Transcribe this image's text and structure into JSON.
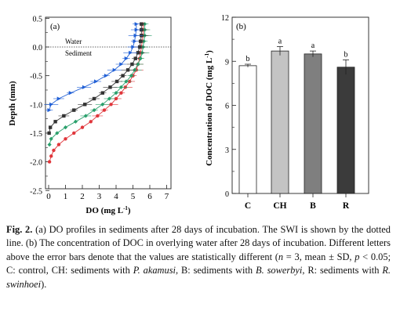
{
  "panel_a": {
    "label": "(a)",
    "water_label": "Water",
    "sediment_label": "Sediment",
    "xlabel_main": "DO (mg L",
    "xlabel_sup": "-1",
    "xlabel_end": ")",
    "ylabel": "Depth (mm)",
    "colors": {
      "C": "#e0363b",
      "CH": "#2aa06c",
      "B": "#333333",
      "R": "#2160d6"
    }
  },
  "panel_b": {
    "label": "(b)",
    "ylabel_main": "Concentration of DOC (mg L",
    "ylabel_sup": "-1",
    "ylabel_end": ")",
    "bar_colors": [
      "#ffffff",
      "#c4c4c4",
      "#7f7f7f",
      "#3b3b3b"
    ]
  },
  "caption": {
    "title": "Fig. 2.",
    "text1": " (a) DO profiles in sediments after 28 days of incubation. The SWI is shown by the dotted line. (b) The concentration of DOC in overlying water after 28 days of incubation. Different letters above the error bars denote that the values are statistically different (",
    "n": "n",
    "text2": " = 3, mean ± SD, ",
    "p": "p",
    "text3": " < 0.05; C: control, CH: sediments with ",
    "sp1": "P. akamusi",
    "text4": ", B: sediments with ",
    "sp2": "B. sowerbyi",
    "text5": ", R: sediments with ",
    "sp3": "R. swinhoei",
    "text6": ")."
  },
  "chart_data": [
    {
      "type": "line",
      "x_axis": {
        "ticks": [
          "0",
          "1",
          "2",
          "3",
          "4",
          "5",
          "6",
          "7"
        ],
        "range": [
          0,
          7
        ]
      },
      "y_axis": {
        "ticks": [
          "0.5",
          "0.0",
          "-0.5",
          "-1.0",
          "-1.5",
          "-2.0",
          "-2.5"
        ],
        "range": [
          -2.5,
          0.5
        ]
      },
      "swi_depth": 0.0,
      "series": [
        {
          "key": "C",
          "x": [
            5.6,
            5.6,
            5.6,
            5.55,
            5.5,
            5.45,
            5.4,
            5.3,
            5.2,
            5.0,
            4.8,
            4.55,
            4.3,
            4.0,
            3.7,
            3.3,
            2.9,
            2.5,
            2.0,
            1.5,
            1.0,
            0.6,
            0.3,
            0.15,
            0.05
          ],
          "y": [
            0.4,
            0.3,
            0.2,
            0.1,
            0.0,
            -0.1,
            -0.2,
            -0.3,
            -0.4,
            -0.5,
            -0.6,
            -0.7,
            -0.8,
            -0.9,
            -1.0,
            -1.1,
            -1.2,
            -1.3,
            -1.4,
            -1.5,
            -1.6,
            -1.7,
            -1.8,
            -1.9,
            -2.0
          ]
        },
        {
          "key": "CH",
          "x": [
            5.7,
            5.7,
            5.7,
            5.65,
            5.6,
            5.55,
            5.45,
            5.3,
            5.1,
            4.9,
            4.6,
            4.3,
            4.0,
            3.6,
            3.2,
            2.7,
            2.2,
            1.6,
            1.0,
            0.5,
            0.15,
            0.05
          ],
          "y": [
            0.4,
            0.3,
            0.2,
            0.1,
            0.0,
            -0.1,
            -0.2,
            -0.3,
            -0.4,
            -0.5,
            -0.6,
            -0.7,
            -0.8,
            -0.9,
            -1.0,
            -1.1,
            -1.2,
            -1.3,
            -1.4,
            -1.5,
            -1.6,
            -1.7
          ]
        },
        {
          "key": "B",
          "x": [
            5.5,
            5.5,
            5.5,
            5.45,
            5.4,
            5.3,
            5.15,
            4.95,
            4.7,
            4.4,
            4.05,
            3.65,
            3.2,
            2.7,
            2.15,
            1.5,
            0.9,
            0.4,
            0.1,
            0.03
          ],
          "y": [
            0.4,
            0.3,
            0.2,
            0.1,
            0.0,
            -0.1,
            -0.2,
            -0.3,
            -0.4,
            -0.5,
            -0.6,
            -0.7,
            -0.8,
            -0.9,
            -1.0,
            -1.1,
            -1.2,
            -1.3,
            -1.4,
            -1.5
          ]
        },
        {
          "key": "R",
          "x": [
            5.2,
            5.2,
            5.15,
            5.1,
            5.0,
            4.85,
            4.6,
            4.3,
            3.9,
            3.4,
            2.8,
            2.1,
            1.3,
            0.6,
            0.15,
            0.03
          ],
          "y": [
            0.4,
            0.3,
            0.2,
            0.1,
            0.0,
            -0.1,
            -0.2,
            -0.3,
            -0.4,
            -0.5,
            -0.6,
            -0.7,
            -0.8,
            -0.9,
            -1.0,
            -1.1
          ]
        }
      ]
    },
    {
      "type": "bar",
      "categories": [
        "C",
        "CH",
        "B",
        "R"
      ],
      "values": [
        8.7,
        9.7,
        9.5,
        8.6
      ],
      "errors": [
        0.1,
        0.3,
        0.2,
        0.5
      ],
      "letters": [
        "b",
        "a",
        "a",
        "b"
      ],
      "y_axis": {
        "ticks": [
          "0",
          "3",
          "6",
          "9",
          "12"
        ],
        "range": [
          0,
          12
        ]
      }
    }
  ]
}
